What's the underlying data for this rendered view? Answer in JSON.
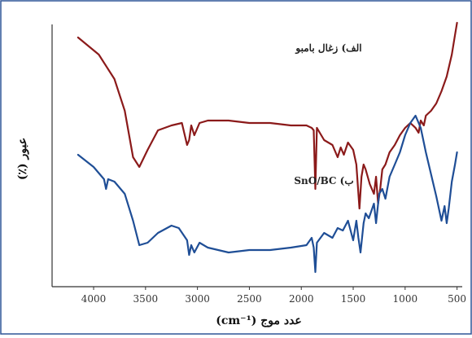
{
  "chart_data": {
    "type": "line",
    "xlabel": "عدد موج (cm⁻¹)",
    "ylabel": "عبور (٪)",
    "x_reversed": true,
    "xlim": [
      4400,
      450
    ],
    "x_ticks": [
      {
        "value": 4000,
        "label": "4000"
      },
      {
        "value": 3500,
        "label": "3500"
      },
      {
        "value": 3000,
        "label": "3000"
      },
      {
        "value": 2500,
        "label": "2500"
      },
      {
        "value": 2000,
        "label": "2000"
      },
      {
        "value": 1500,
        "label": "1500"
      },
      {
        "value": 1000,
        "label": "1000"
      },
      {
        "value": 500,
        "label": "500"
      }
    ],
    "y_ticks_shown": false,
    "grid": false,
    "colors": {
      "series_a": "#8b1a1a",
      "series_b": "#1f4e96",
      "axis": "#333333",
      "border": "#2f5597"
    },
    "series": [
      {
        "name": "الف) زغال بامبو",
        "color": "#8b1a1a",
        "x": [
          4150,
          3950,
          3800,
          3700,
          3620,
          3560,
          3480,
          3380,
          3250,
          3150,
          3100,
          3080,
          3060,
          3030,
          2980,
          2900,
          2700,
          2500,
          2300,
          2100,
          1950,
          1900,
          1880,
          1865,
          1850,
          1780,
          1700,
          1650,
          1620,
          1590,
          1550,
          1500,
          1470,
          1440,
          1420,
          1400,
          1380,
          1340,
          1300,
          1280,
          1260,
          1240,
          1220,
          1190,
          1150,
          1100,
          1050,
          1000,
          950,
          900,
          870,
          850,
          820,
          800,
          750,
          700,
          650,
          600,
          550,
          520,
          500
        ],
        "y": [
          92,
          85,
          75,
          62,
          43,
          39,
          46,
          54,
          56,
          57,
          48,
          50,
          56,
          52,
          57,
          58,
          58,
          57,
          57,
          56,
          56,
          55,
          54,
          30,
          55,
          50,
          48,
          43,
          47,
          44,
          49,
          46,
          40,
          22,
          35,
          40,
          38,
          32,
          28,
          35,
          24,
          30,
          38,
          40,
          45,
          48,
          52,
          55,
          57,
          55,
          53,
          58,
          56,
          60,
          62,
          65,
          70,
          76,
          85,
          93,
          98
        ]
      },
      {
        "name": "ب) SnO/BC",
        "color": "#1f4e96",
        "x": [
          4150,
          4000,
          3900,
          3880,
          3860,
          3800,
          3700,
          3620,
          3560,
          3480,
          3380,
          3250,
          3180,
          3100,
          3080,
          3060,
          3030,
          2980,
          2900,
          2700,
          2500,
          2300,
          2100,
          1950,
          1900,
          1880,
          1865,
          1850,
          1780,
          1700,
          1650,
          1600,
          1550,
          1500,
          1470,
          1450,
          1430,
          1400,
          1380,
          1350,
          1300,
          1280,
          1250,
          1220,
          1190,
          1150,
          1100,
          1050,
          1000,
          950,
          900,
          850,
          800,
          750,
          700,
          650,
          620,
          600,
          580,
          550,
          520,
          500
        ],
        "y": [
          44,
          39,
          34,
          30,
          34,
          33,
          28,
          17,
          7,
          8,
          12,
          15,
          14,
          9,
          3,
          7,
          4,
          8,
          6,
          4,
          5,
          5,
          6,
          7,
          10,
          6,
          -4,
          8,
          12,
          10,
          14,
          13,
          17,
          9,
          17,
          10,
          4,
          16,
          20,
          18,
          24,
          16,
          28,
          30,
          26,
          35,
          40,
          45,
          52,
          57,
          60,
          55,
          45,
          36,
          27,
          17,
          23,
          16,
          22,
          33,
          40,
          45
        ]
      }
    ]
  }
}
